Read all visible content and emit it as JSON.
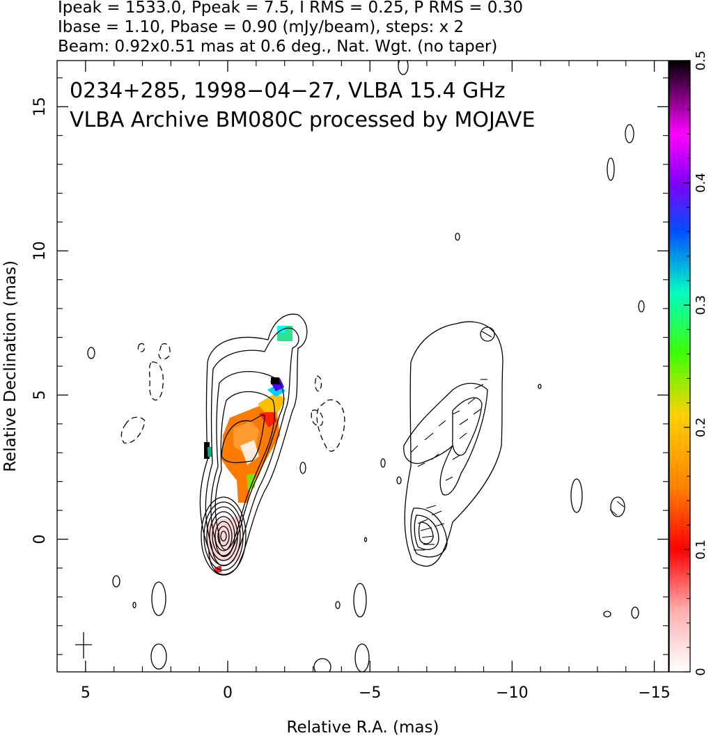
{
  "header": {
    "line1": "Ipeak = 1533.0, Ppeak = 7.5, I RMS = 0.25, P RMS = 0.30",
    "line2": "Ibase = 1.10, Pbase = 0.90 (mJy/beam), steps: x 2",
    "line3": "Beam: 0.92x0.51 mas at 0.6 deg., Nat. Wgt. (no taper)"
  },
  "panel": {
    "title1": "0234+285, 1998−04−27, VLBA 15.4 GHz",
    "title2": "VLBA Archive BM080C processed by MOJAVE"
  },
  "chart_data": {
    "type": "heatmap",
    "xlabel": "Relative R.A. (mas)",
    "ylabel": "Relative Declination (mas)",
    "xlim": [
      6,
      -15.5
    ],
    "ylim": [
      -4.6,
      16.6
    ],
    "xticks": [
      5,
      0,
      -5,
      -10,
      -15
    ],
    "xtick_labels": [
      "5",
      "0",
      "−5",
      "−10",
      "−15"
    ],
    "yticks": [
      0,
      5,
      10,
      15
    ],
    "ytick_labels": [
      "0",
      "5",
      "10",
      "15"
    ],
    "colorbar": {
      "range": [
        0,
        0.5
      ],
      "ticks": [
        0,
        0.1,
        0.2,
        0.3,
        0.4,
        0.5
      ],
      "tick_labels": [
        "0",
        "0.1",
        "0.2",
        "0.3",
        "0.4",
        "0.5"
      ],
      "colors": [
        "#ffffff",
        "#ffb0b0",
        "#ff0000",
        "#ff8000",
        "#ffd000",
        "#00ff00",
        "#00ffff",
        "#0000ff",
        "#ff00ff",
        "#000000"
      ]
    },
    "core_position": [
      0,
      0
    ],
    "beam_cross_position": [
      4.9,
      -3.8
    ]
  }
}
